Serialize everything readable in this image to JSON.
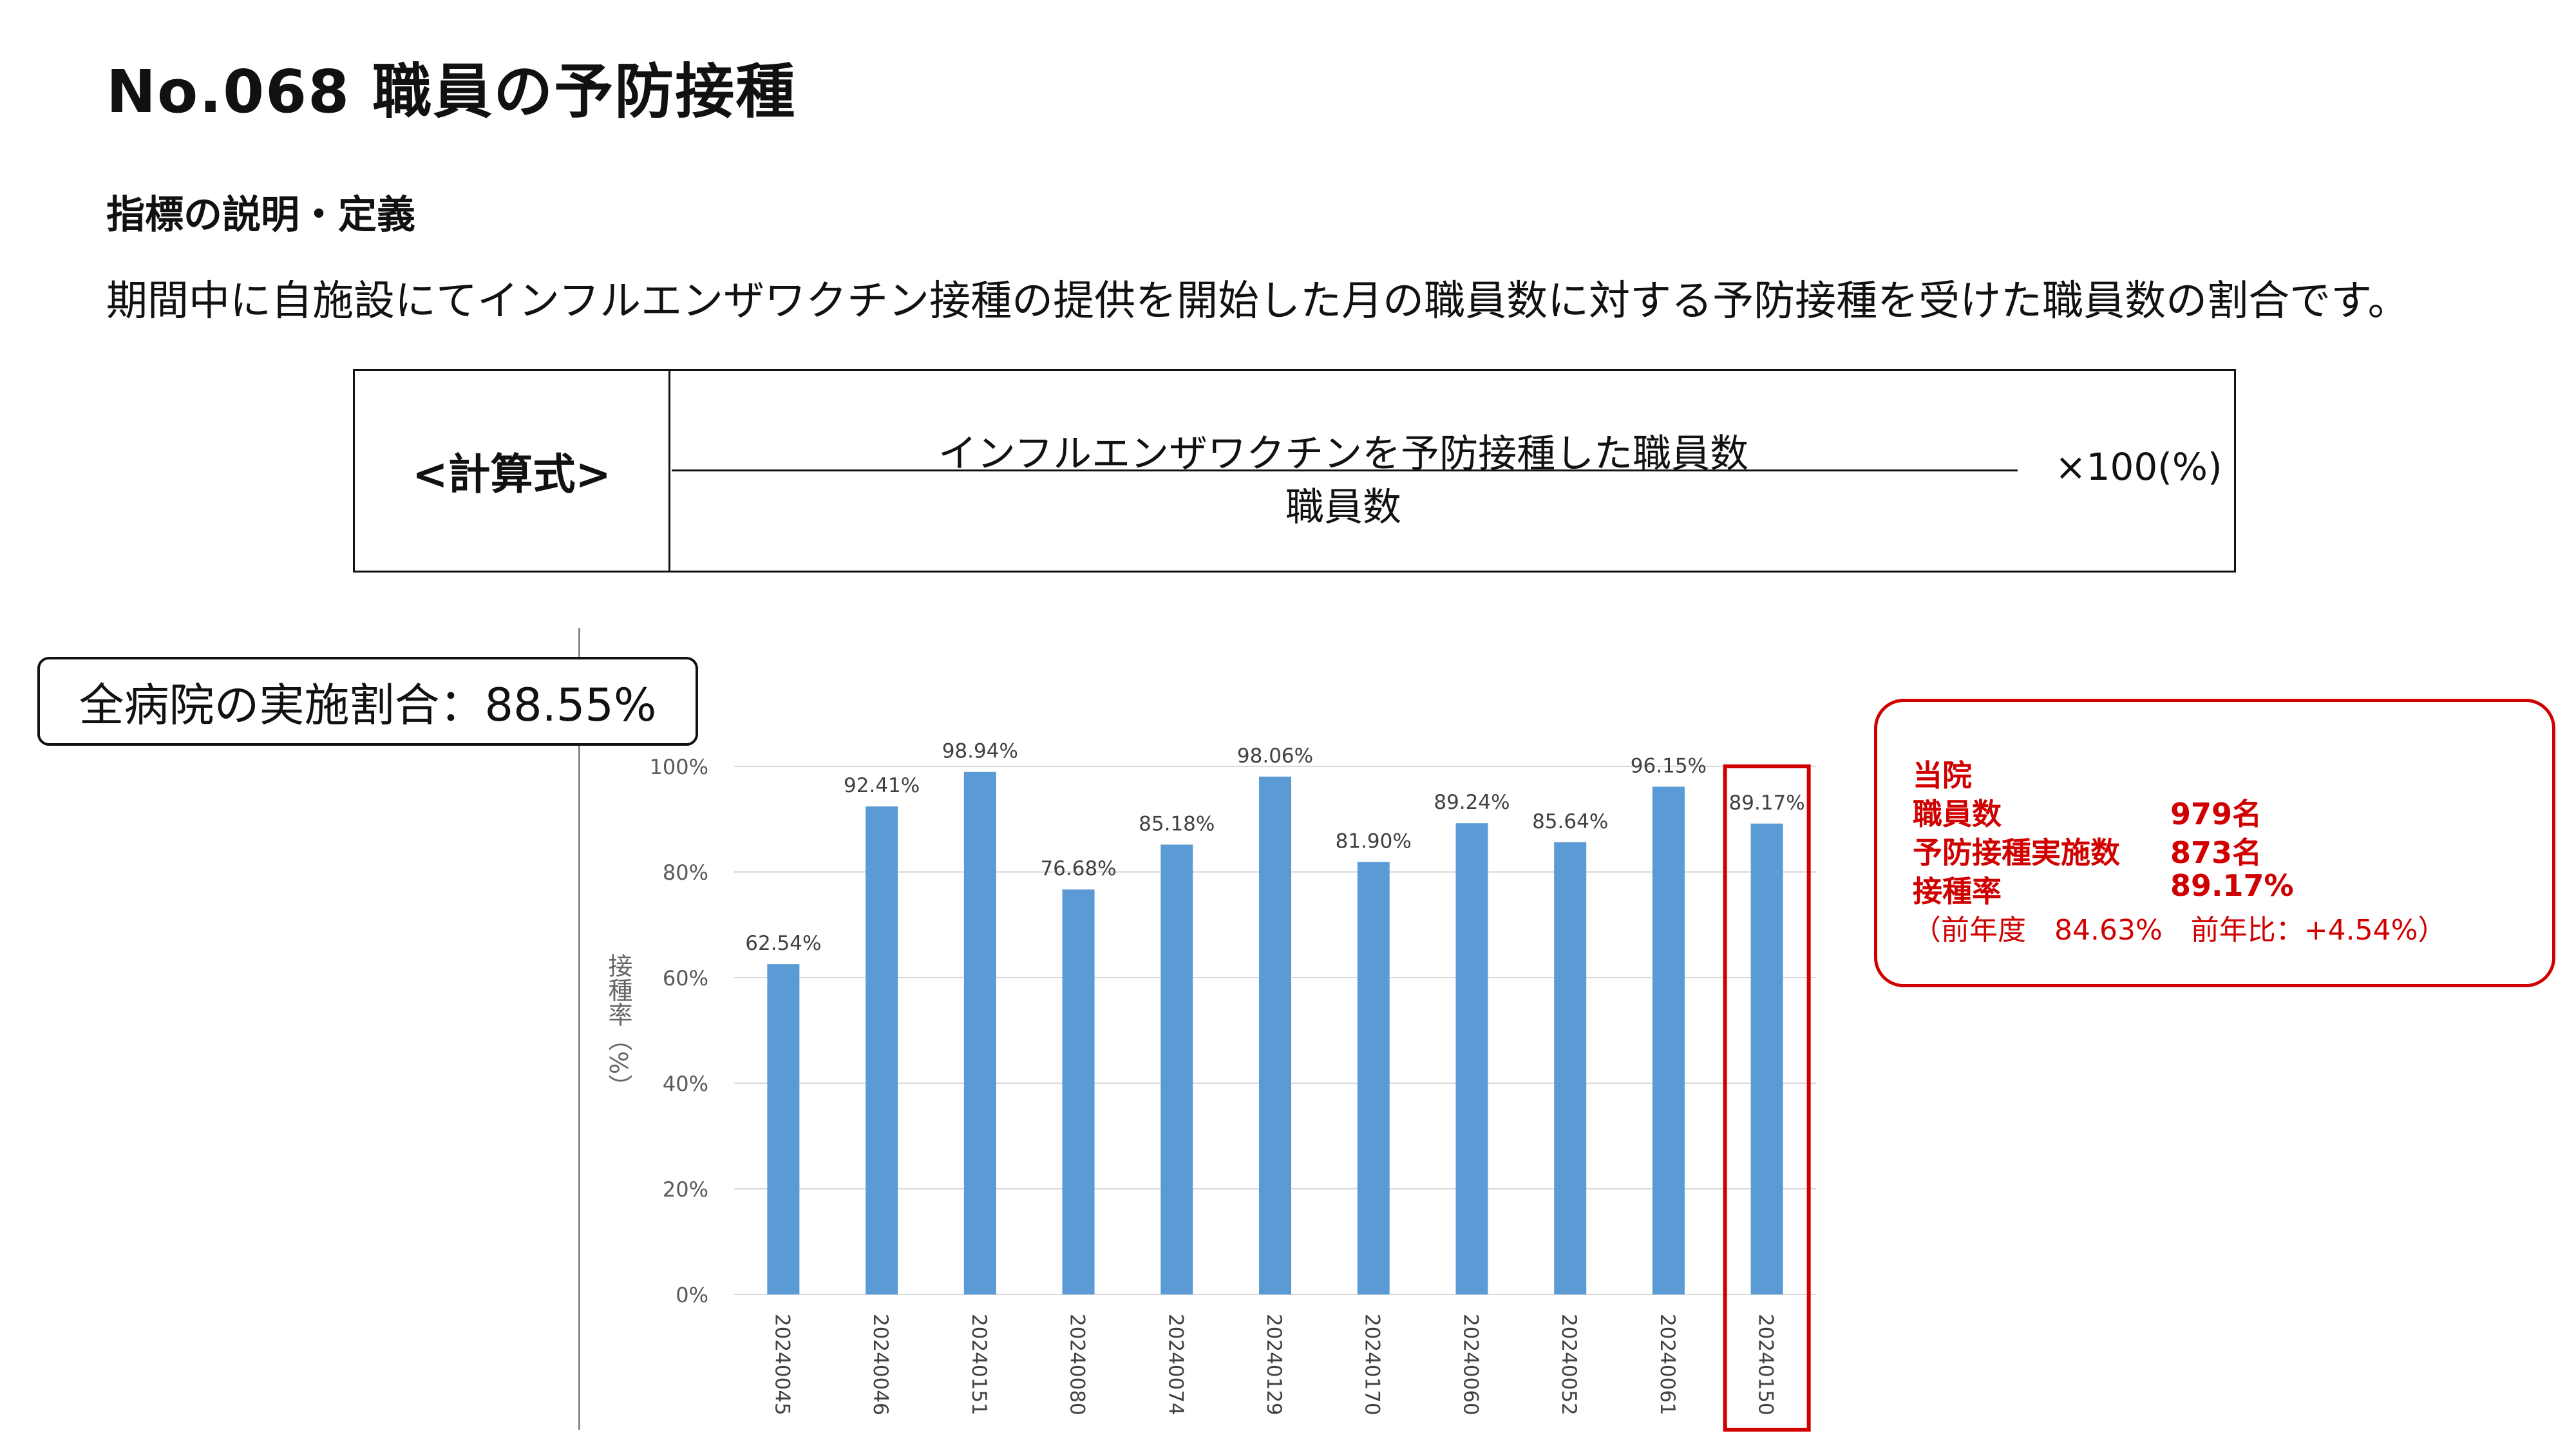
{
  "header": {
    "title": "No.068 職員の予防接種",
    "subhead": "指標の説明・定義",
    "description": "期間中に自施設にてインフルエンザワクチン接種の提供を開始した月の職員数に対する予防接種を受けた職員数の割合です。"
  },
  "formula": {
    "label": "<計算式>",
    "numerator": "インフルエンザワクチンを予防接種した職員数",
    "denominator": "職員数",
    "multiplier": "×100(%)"
  },
  "all_hospitals": {
    "label": "全病院の実施割合：88.55%"
  },
  "info": {
    "title": "当院",
    "rows": [
      {
        "label": "職員数",
        "value": "979名"
      },
      {
        "label": "予防接種実施数",
        "value": "873名"
      },
      {
        "label": "接種率",
        "value": "89.17%"
      }
    ],
    "note": "（前年度　84.63%　前年比：+4.54%）",
    "accent": "#d00000"
  },
  "chart_data": {
    "type": "bar",
    "categories": [
      "20240045",
      "20240046",
      "20240151",
      "20240080",
      "20240074",
      "20240129",
      "20240170",
      "20240060",
      "20240052",
      "20240061",
      "20240150"
    ],
    "values": [
      62.54,
      92.41,
      98.94,
      76.68,
      85.18,
      98.06,
      81.9,
      89.24,
      85.64,
      96.15,
      89.17
    ],
    "data_labels": [
      "62.54%",
      "92.41%",
      "98.94%",
      "76.68%",
      "85.18%",
      "98.06%",
      "81.90%",
      "89.24%",
      "85.64%",
      "96.15%",
      "89.17%"
    ],
    "ylabel": "接種率（%）",
    "ylim": [
      0,
      100
    ],
    "yticks": [
      0,
      20,
      40,
      60,
      80,
      100
    ],
    "ytick_labels": [
      "0%",
      "20%",
      "40%",
      "60%",
      "80%",
      "100%"
    ],
    "grid": true,
    "bar_color": "#5b9bd5",
    "highlight_category": "20240150",
    "highlight_color": "#d00000"
  }
}
